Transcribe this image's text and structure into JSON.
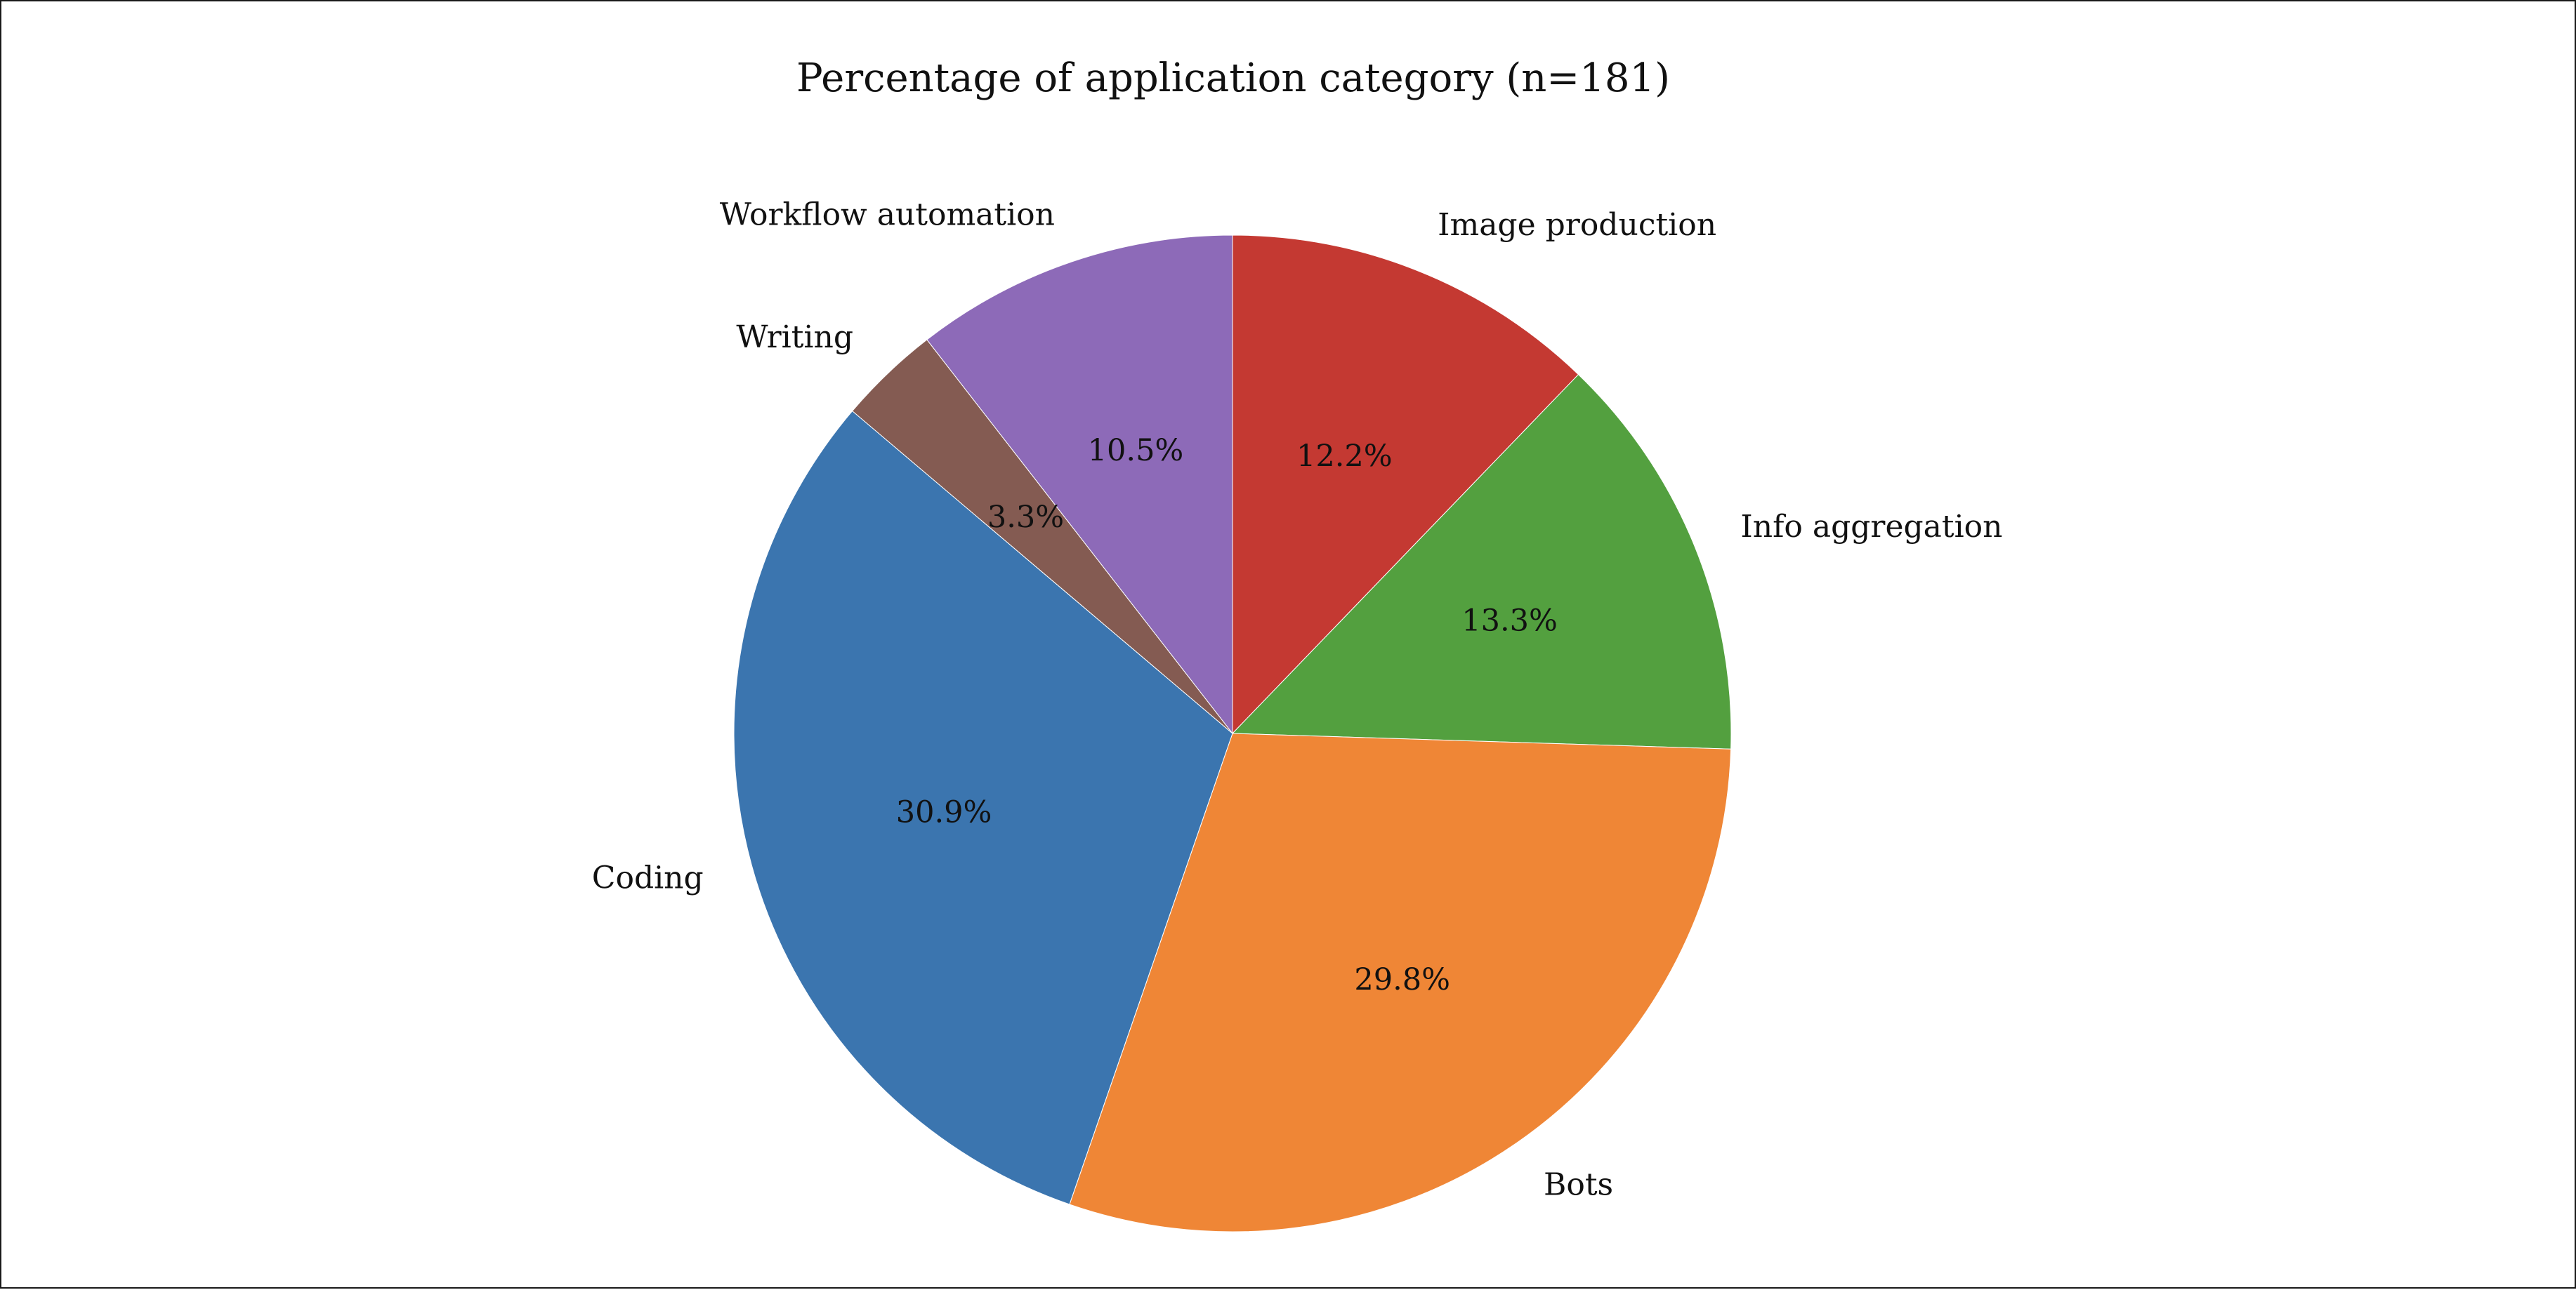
{
  "chart_data": {
    "type": "pie",
    "title": "Percentage of application category (n=181)",
    "categories": [
      "Image production",
      "Info aggregation",
      "Bots",
      "Coding",
      "Writing",
      "Workflow automation"
    ],
    "values": [
      12.2,
      13.3,
      29.8,
      30.9,
      3.3,
      10.5
    ],
    "percent_labels": [
      "12.2%",
      "13.3%",
      "29.8%",
      "30.9%",
      "3.3%",
      "10.5%"
    ],
    "colors": [
      "#c43932",
      "#53a03f",
      "#ef8636",
      "#3b75af",
      "#845b52",
      "#8d6ab8"
    ],
    "start_angle_deg": 90,
    "direction": "clockwise",
    "legend": "none"
  }
}
